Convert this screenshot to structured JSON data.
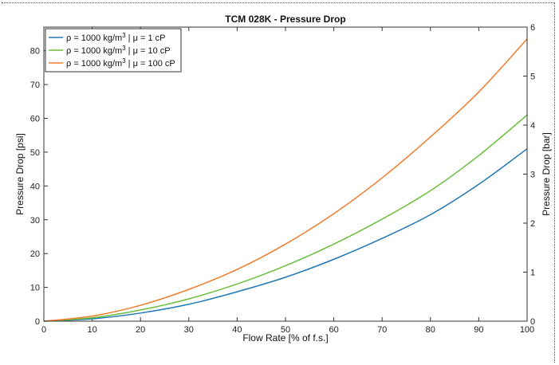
{
  "chart_data": {
    "type": "line",
    "title": "TCM 028K - Pressure Drop",
    "xlabel": "Flow Rate [% of f.s.]",
    "ylabel": "Pressure Drop [psi]",
    "y2label": "Pressure Drop [bar]",
    "xlim": [
      0,
      100
    ],
    "ylim": [
      0,
      87
    ],
    "y2lim": [
      0,
      6
    ],
    "xticks": [
      0,
      10,
      20,
      30,
      40,
      50,
      60,
      70,
      80,
      90,
      100
    ],
    "yticks": [
      0,
      10,
      20,
      30,
      40,
      50,
      60,
      70,
      80
    ],
    "y2ticks": [
      0,
      1,
      2,
      3,
      4,
      5,
      6
    ],
    "grid": false,
    "legend_position": "top-left",
    "x": [
      0,
      10,
      20,
      30,
      40,
      50,
      60,
      70,
      80,
      90,
      100
    ],
    "series": [
      {
        "name": "ρ = 1000 kg/m³ | μ = 1 cP",
        "label_main": "ρ = 1000 kg/m",
        "label_sup": "3",
        "label_tail": " | μ = 1 cP",
        "color": "#1f77b4",
        "values": [
          0,
          0.7,
          2.4,
          5.0,
          8.7,
          13.0,
          18.3,
          24.5,
          31.5,
          40.5,
          51.0
        ]
      },
      {
        "name": "ρ = 1000 kg/m³ | μ = 10 cP",
        "label_main": "ρ = 1000 kg/m",
        "label_sup": "3",
        "label_tail": " | μ = 10 cP",
        "color": "#6abf3a",
        "values": [
          0,
          1.0,
          3.3,
          6.6,
          11.0,
          16.4,
          22.8,
          30.2,
          38.6,
          49.0,
          61.0
        ]
      },
      {
        "name": "ρ = 1000 kg/m³ | μ = 100 cP",
        "label_main": "ρ = 1000 kg/m",
        "label_sup": "3",
        "label_tail": " | μ = 100 cP",
        "color": "#f07d2e",
        "values": [
          0,
          1.5,
          4.7,
          9.4,
          15.3,
          22.8,
          31.8,
          42.4,
          54.5,
          67.8,
          83.5
        ]
      }
    ]
  }
}
